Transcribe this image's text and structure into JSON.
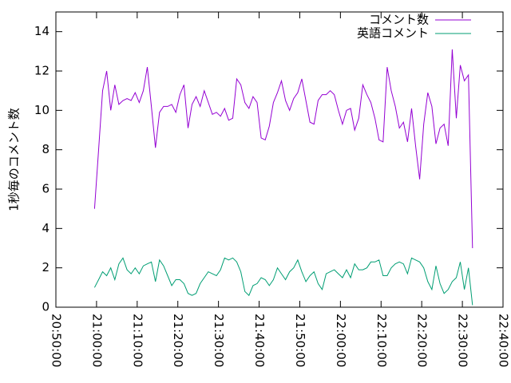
{
  "chart_data": {
    "type": "line",
    "ylabel": "1秒毎のコメント数",
    "x": [
      "20:59:30",
      "21:00:30",
      "21:01:30",
      "21:02:30",
      "21:03:30",
      "21:04:30",
      "21:05:30",
      "21:06:30",
      "21:07:30",
      "21:08:30",
      "21:09:30",
      "21:10:30",
      "21:11:30",
      "21:12:30",
      "21:13:30",
      "21:14:30",
      "21:15:30",
      "21:16:30",
      "21:17:30",
      "21:18:30",
      "21:19:30",
      "21:20:30",
      "21:21:30",
      "21:22:30",
      "21:23:30",
      "21:24:30",
      "21:25:30",
      "21:26:30",
      "21:27:30",
      "21:28:30",
      "21:29:30",
      "21:30:30",
      "21:31:30",
      "21:32:30",
      "21:33:30",
      "21:34:30",
      "21:35:30",
      "21:36:30",
      "21:37:30",
      "21:38:30",
      "21:39:30",
      "21:40:30",
      "21:41:30",
      "21:42:30",
      "21:43:30",
      "21:44:30",
      "21:45:30",
      "21:46:30",
      "21:47:30",
      "21:48:30",
      "21:49:30",
      "21:50:30",
      "21:51:30",
      "21:52:30",
      "21:53:30",
      "21:54:30",
      "21:55:30",
      "21:56:30",
      "21:57:30",
      "21:58:30",
      "21:59:30",
      "22:00:30",
      "22:01:30",
      "22:02:30",
      "22:03:30",
      "22:04:30",
      "22:05:30",
      "22:06:30",
      "22:07:30",
      "22:08:30",
      "22:09:30",
      "22:10:30",
      "22:11:30",
      "22:12:30",
      "22:13:30",
      "22:14:30",
      "22:15:30",
      "22:16:30",
      "22:17:30",
      "22:18:30",
      "22:19:30",
      "22:20:30",
      "22:21:30",
      "22:22:30",
      "22:23:30",
      "22:24:30",
      "22:25:30",
      "22:26:30",
      "22:27:30",
      "22:28:30",
      "22:29:30",
      "22:30:30",
      "22:31:30",
      "22:32:30"
    ],
    "series": [
      {
        "name": "コメント数",
        "color": "#9400d3",
        "values": [
          5.0,
          8.0,
          11.0,
          12.0,
          10.0,
          11.3,
          10.3,
          10.5,
          10.6,
          10.5,
          10.9,
          10.4,
          11.0,
          12.2,
          10.2,
          8.1,
          9.9,
          10.2,
          10.2,
          10.3,
          9.9,
          10.8,
          11.3,
          9.1,
          10.3,
          10.7,
          10.2,
          11.0,
          10.4,
          9.8,
          9.9,
          9.7,
          10.1,
          9.5,
          9.6,
          11.6,
          11.3,
          10.4,
          10.1,
          10.7,
          10.4,
          8.6,
          8.5,
          9.2,
          10.4,
          10.9,
          11.5,
          10.5,
          10.0,
          10.6,
          10.9,
          11.6,
          10.5,
          9.4,
          9.3,
          10.5,
          10.8,
          10.8,
          11.0,
          10.8,
          10.0,
          9.3,
          10.0,
          10.1,
          9.0,
          9.6,
          11.3,
          10.8,
          10.4,
          9.6,
          8.5,
          8.4,
          12.2,
          11.0,
          10.2,
          9.1,
          9.4,
          8.4,
          10.1,
          8.2,
          6.5,
          9.3,
          10.9,
          10.2,
          8.3,
          9.1,
          9.3,
          8.2,
          13.1,
          9.6,
          12.3,
          11.5,
          11.8,
          3.0
        ]
      },
      {
        "name": "英語コメント",
        "color": "#009e73",
        "values": [
          1.0,
          1.4,
          1.8,
          1.6,
          2.0,
          1.4,
          2.2,
          2.5,
          1.9,
          1.7,
          2.0,
          1.7,
          2.1,
          2.2,
          2.3,
          1.3,
          2.4,
          2.1,
          1.6,
          1.1,
          1.4,
          1.4,
          1.2,
          0.7,
          0.6,
          0.7,
          1.2,
          1.5,
          1.8,
          1.7,
          1.6,
          1.9,
          2.5,
          2.4,
          2.5,
          2.3,
          1.8,
          0.8,
          0.6,
          1.1,
          1.2,
          1.5,
          1.4,
          1.1,
          1.4,
          2.0,
          1.7,
          1.4,
          1.8,
          2.0,
          2.4,
          1.8,
          1.3,
          1.6,
          1.8,
          1.2,
          0.9,
          1.7,
          1.8,
          1.9,
          1.7,
          1.5,
          1.9,
          1.5,
          2.2,
          1.9,
          1.9,
          2.0,
          2.3,
          2.3,
          2.4,
          1.6,
          1.6,
          2.0,
          2.2,
          2.3,
          2.2,
          1.7,
          2.5,
          2.4,
          2.3,
          2.0,
          1.3,
          0.9,
          2.1,
          1.2,
          0.7,
          0.9,
          1.3,
          1.5,
          2.3,
          0.9,
          2.0,
          0.1
        ]
      }
    ],
    "xlim": [
      "20:50:00",
      "22:40:00"
    ],
    "xticks": [
      "20:50:00",
      "21:00:00",
      "21:10:00",
      "21:20:00",
      "21:30:00",
      "21:40:00",
      "21:50:00",
      "22:00:00",
      "22:10:00",
      "22:20:00",
      "22:30:00",
      "22:40:00"
    ],
    "ylim": [
      0,
      15
    ],
    "yticks": [
      0,
      2,
      4,
      6,
      8,
      10,
      12,
      14
    ],
    "legend": "upper right",
    "grid": false
  }
}
